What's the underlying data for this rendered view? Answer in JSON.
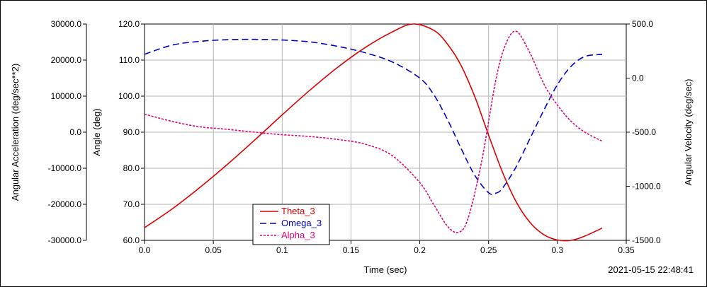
{
  "chart_data": {
    "type": "line",
    "xlabel": "Time (sec)",
    "ylabel_left_outer": "Angular Acceleration (deg/sec**2)",
    "ylabel_left_inner": "Angle (deg)",
    "ylabel_right": "Angular Velocity (deg/sec)",
    "timestamp": "2021-05-15 22:48:41",
    "grid": true,
    "legend_position": "bottom-left",
    "xlim": [
      0,
      0.35
    ],
    "x_ticks": [
      "0.0",
      "0.05",
      "0.1",
      "0.15",
      "0.2",
      "0.25",
      "0.3",
      "0.35"
    ],
    "angle_axis": {
      "ylim": [
        60,
        120
      ],
      "ticks": [
        "120.0",
        "110.0",
        "100.0",
        "90.0",
        "80.0",
        "70.0",
        "60.0"
      ]
    },
    "accel_axis": {
      "ylim": [
        -30000,
        30000
      ],
      "ticks": [
        "30000.0",
        "20000.0",
        "10000.0",
        "0.0",
        "-10000.0",
        "-20000.0",
        "-30000.0"
      ]
    },
    "velocity_axis": {
      "ylim": [
        -1500,
        500
      ],
      "ticks": [
        "500.0",
        "0.0",
        "-500.0",
        "-1000.0",
        "-1500.0"
      ]
    },
    "series": [
      {
        "name": "Theta_3",
        "axis": "angle",
        "color": "#dd0000",
        "dash": "solid",
        "x": [
          0,
          0.02,
          0.04,
          0.06,
          0.08,
          0.1,
          0.12,
          0.14,
          0.16,
          0.18,
          0.195,
          0.21,
          0.22,
          0.23,
          0.24,
          0.25,
          0.26,
          0.27,
          0.28,
          0.29,
          0.3,
          0.31,
          0.32,
          0.3325
        ],
        "values": [
          63.5,
          68.7,
          74.6,
          81.0,
          87.8,
          94.8,
          101.6,
          107.9,
          113.4,
          117.8,
          120.0,
          118.3,
          114.5,
          108.5,
          99.8,
          89.2,
          79.0,
          70.7,
          65.0,
          61.6,
          60.1,
          60.0,
          61.2,
          63.4
        ]
      },
      {
        "name": "Omega_3",
        "axis": "velocity",
        "color": "#0000cc",
        "dash": "dashed",
        "x": [
          0,
          0.02,
          0.04,
          0.06,
          0.08,
          0.1,
          0.12,
          0.14,
          0.16,
          0.18,
          0.2,
          0.21,
          0.22,
          0.23,
          0.24,
          0.25,
          0.255,
          0.26,
          0.27,
          0.28,
          0.29,
          0.3,
          0.31,
          0.32,
          0.3325
        ],
        "values": [
          220,
          305,
          340,
          355,
          358,
          352,
          335,
          295,
          235,
          150,
          0,
          -150,
          -380,
          -650,
          -900,
          -1060,
          -1065,
          -1020,
          -820,
          -560,
          -300,
          -60,
          110,
          200,
          220
        ]
      },
      {
        "name": "Alpha_3",
        "axis": "accel",
        "color": "#e0007a",
        "dash": "dotted",
        "x": [
          0,
          0.02,
          0.04,
          0.06,
          0.08,
          0.1,
          0.12,
          0.14,
          0.16,
          0.18,
          0.2,
          0.21,
          0.22,
          0.228,
          0.235,
          0.245,
          0.255,
          0.262,
          0.27,
          0.28,
          0.29,
          0.3,
          0.31,
          0.32,
          0.3325
        ],
        "values": [
          5000,
          3000,
          1500,
          800,
          0,
          -700,
          -1200,
          -2000,
          -3300,
          -6500,
          -14000,
          -20000,
          -26000,
          -27800,
          -24000,
          -8000,
          14000,
          24000,
          28000,
          22000,
          13500,
          7500,
          3000,
          0,
          -2500
        ]
      }
    ]
  }
}
